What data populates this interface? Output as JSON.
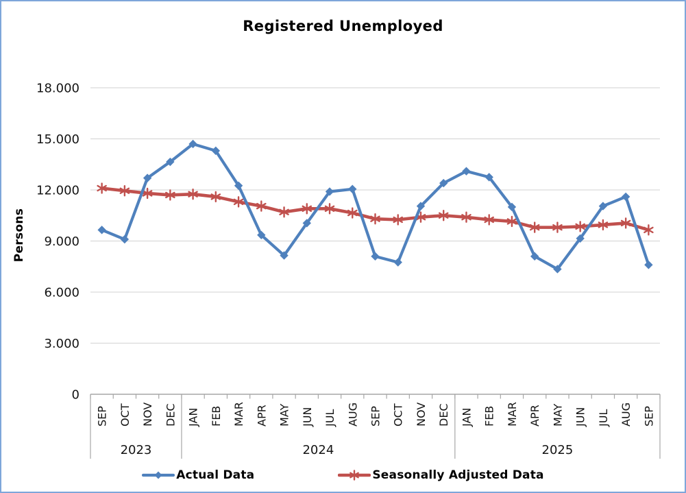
{
  "frame": {
    "border_color": "#7ea6da",
    "background": "#ffffff"
  },
  "chart_data": {
    "type": "line",
    "title": "Registered Unemployed",
    "xlabel": "",
    "ylabel": "Persons",
    "ylim": [
      0,
      18000
    ],
    "ytick_interval": 3000,
    "ytick_labels": [
      "0",
      "3.000",
      "6.000",
      "9.000",
      "12.000",
      "15.000",
      "18.000"
    ],
    "grid": true,
    "legend_position": "bottom",
    "categories": [
      "SEP",
      "OCT",
      "NOV",
      "DEC",
      "JAN",
      "FEB",
      "MAR",
      "APR",
      "MAY",
      "JUN",
      "JUL",
      "AUG",
      "SEP",
      "OCT",
      "NOV",
      "DEC",
      "JAN",
      "FEB",
      "MAR",
      "APR",
      "MAY",
      "JUN",
      "JUL",
      "AUG",
      "SEP"
    ],
    "year_groups": [
      {
        "label": "2023",
        "start": 0,
        "count": 4
      },
      {
        "label": "2024",
        "start": 4,
        "count": 12
      },
      {
        "label": "2025",
        "start": 16,
        "count": 9
      }
    ],
    "series": [
      {
        "name": "Actual Data",
        "color": "#4f81bd",
        "marker": "diamond",
        "values": [
          9650,
          9100,
          12700,
          13650,
          14700,
          14300,
          12250,
          9350,
          8150,
          10050,
          11900,
          12050,
          8100,
          7750,
          11050,
          12400,
          13100,
          12750,
          11000,
          8100,
          7350,
          9150,
          11050,
          11600,
          7600
        ]
      },
      {
        "name": "Seasonally Adjusted Data",
        "color": "#c0504d",
        "marker": "asterisk",
        "values": [
          12100,
          11950,
          11800,
          11700,
          11750,
          11600,
          11300,
          11050,
          10700,
          10900,
          10900,
          10650,
          10300,
          10250,
          10400,
          10500,
          10400,
          10250,
          10150,
          9800,
          9800,
          9850,
          9950,
          10050,
          9650
        ]
      }
    ],
    "style": {
      "grid_color": "#d9d9d9",
      "axis_color": "#a6a6a6",
      "text_color": "#141414"
    }
  }
}
